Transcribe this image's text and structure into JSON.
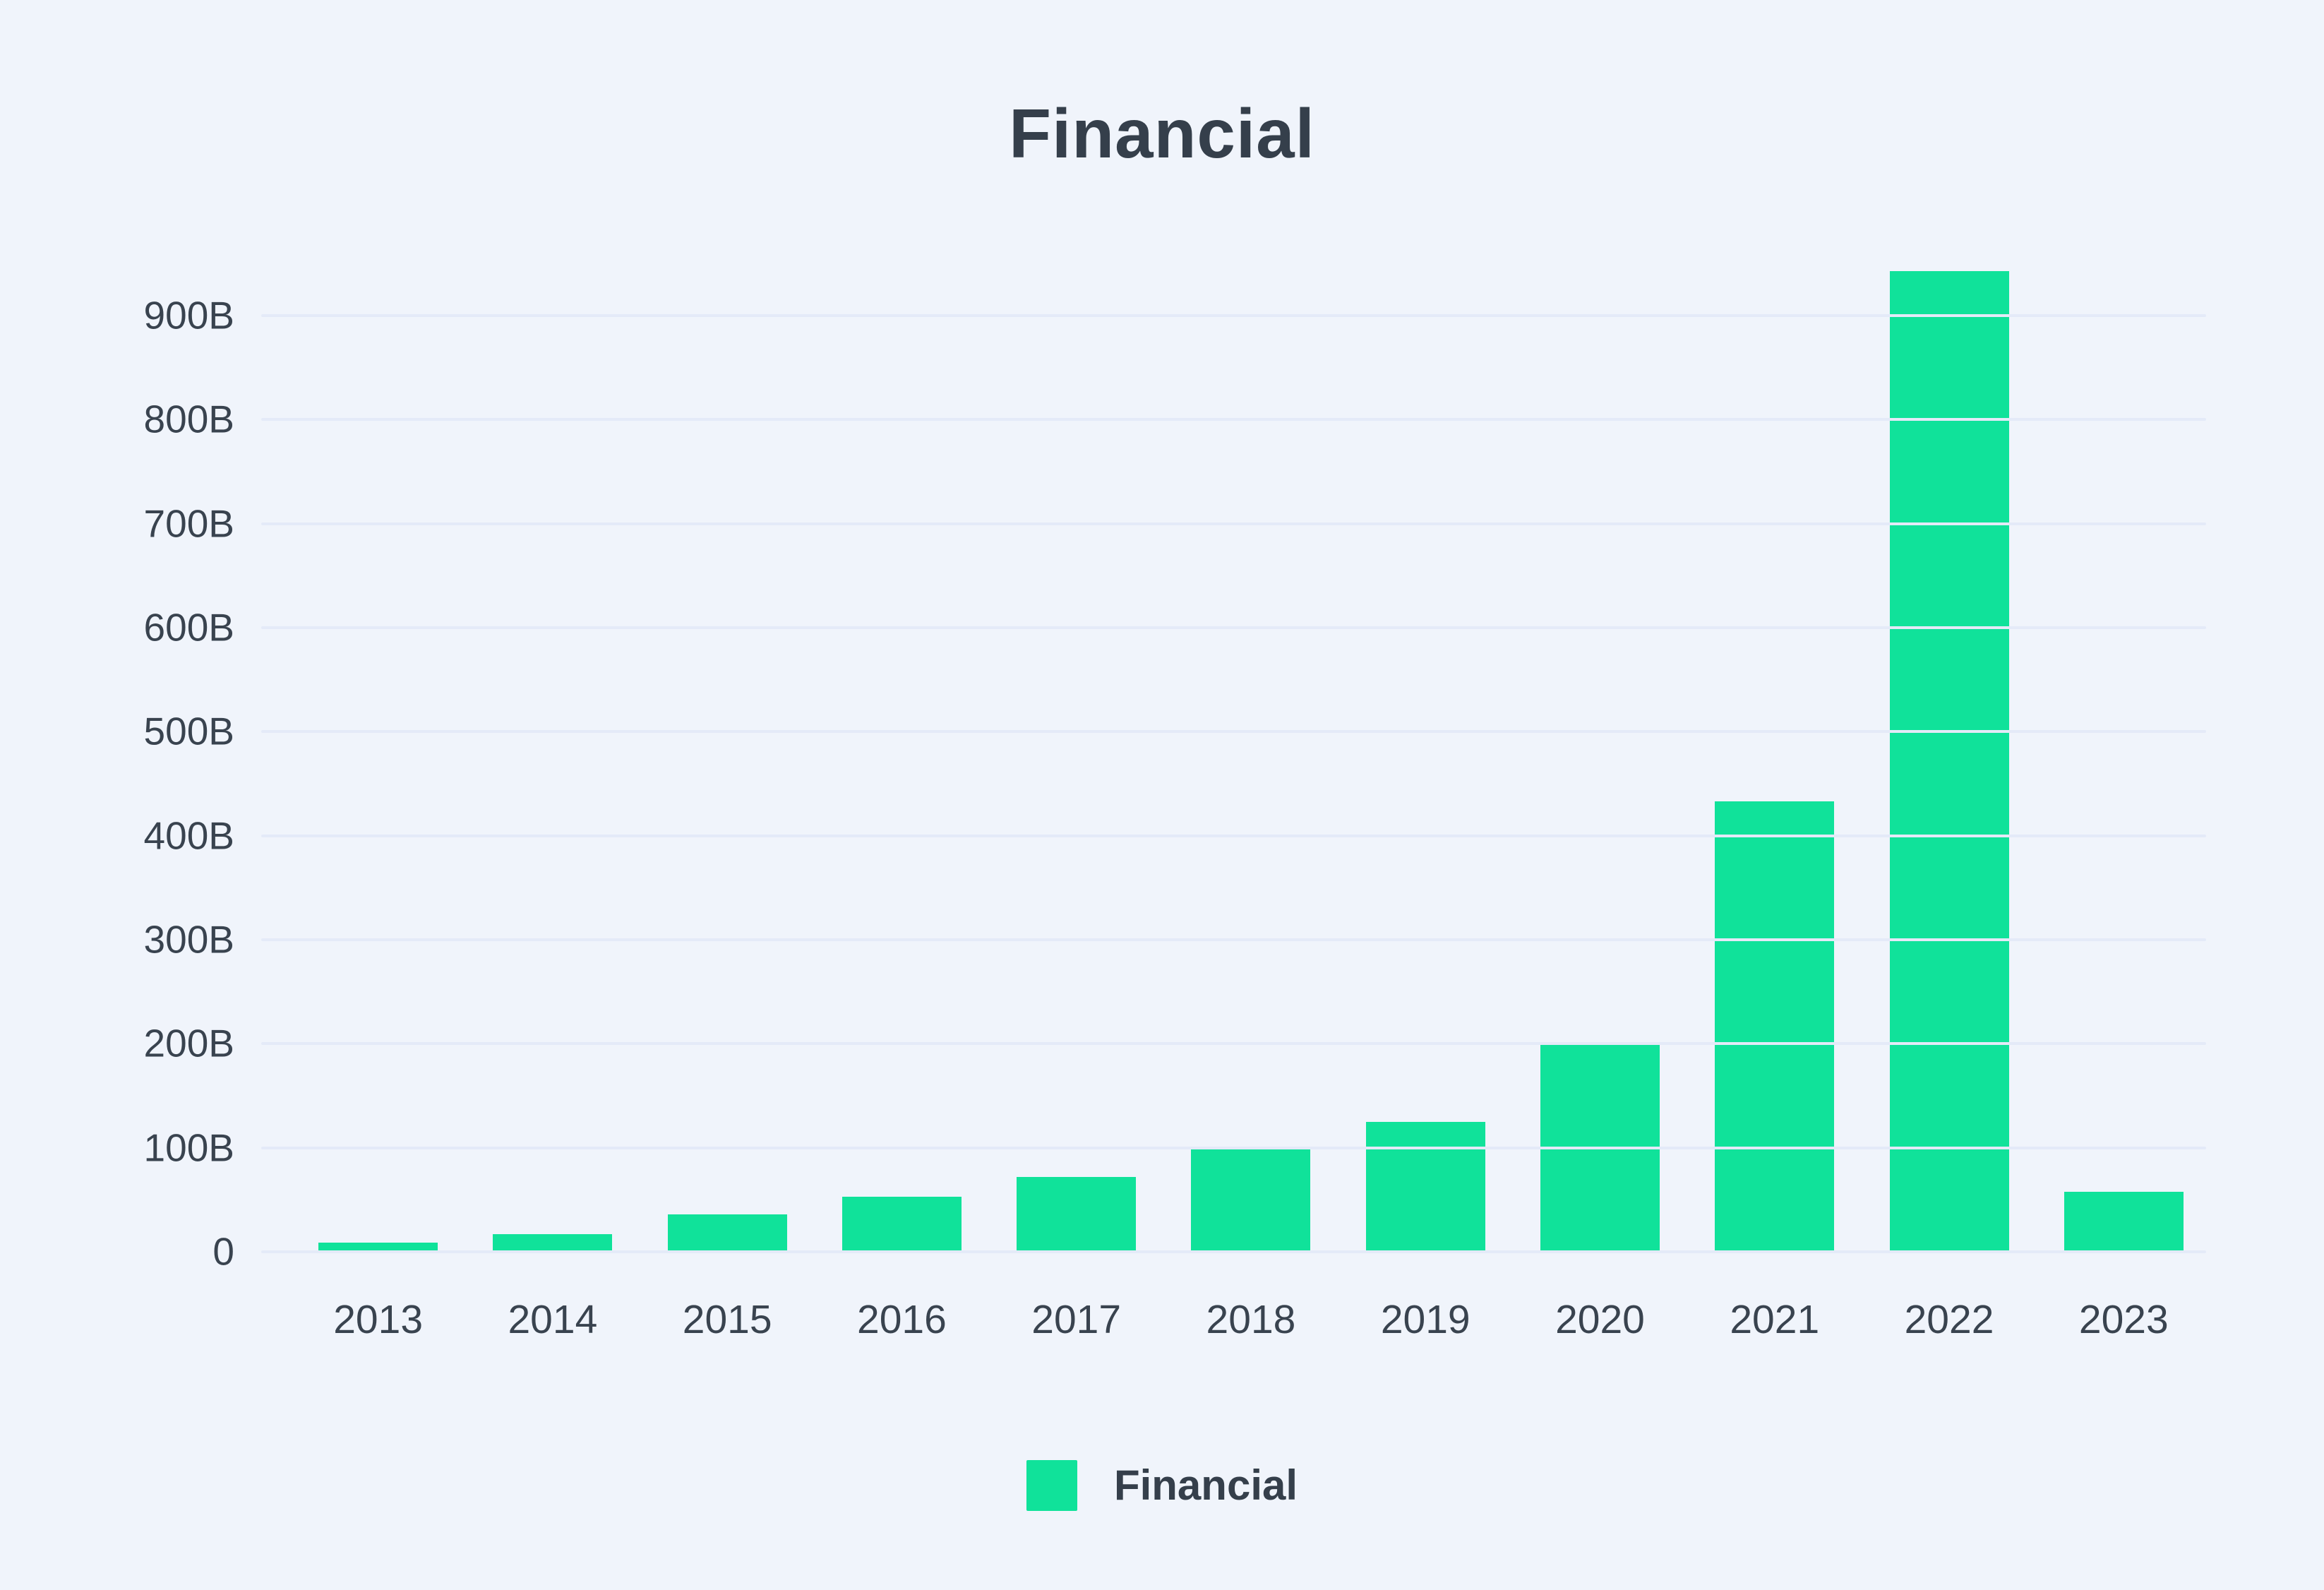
{
  "title": "Financial",
  "colors": {
    "background": "#f0f4fb",
    "bar": "#10e29a",
    "gridline": "#e4eaf8",
    "text_dark": "#353f4b",
    "text_axis": "#39434f"
  },
  "legend": {
    "label": "Financial",
    "swatch_color": "#10e29a",
    "position": "bottom"
  },
  "chart_data": {
    "type": "bar",
    "title": "Financial",
    "categories": [
      "2013",
      "2014",
      "2015",
      "2016",
      "2017",
      "2018",
      "2019",
      "2020",
      "2021",
      "2022",
      "2023"
    ],
    "values": [
      9,
      17,
      36,
      53,
      72,
      100,
      125,
      199,
      433,
      943,
      58
    ],
    "unit": "B",
    "xlabel": "",
    "ylabel": "",
    "ylim": [
      0,
      950
    ],
    "ytick_step": 100,
    "ytick_labels": [
      "0",
      "100B",
      "200B",
      "300B",
      "400B",
      "500B",
      "600B",
      "700B",
      "800B",
      "900B"
    ],
    "grid": true,
    "legend_position": "bottom",
    "bar_color": "#10e29a"
  }
}
